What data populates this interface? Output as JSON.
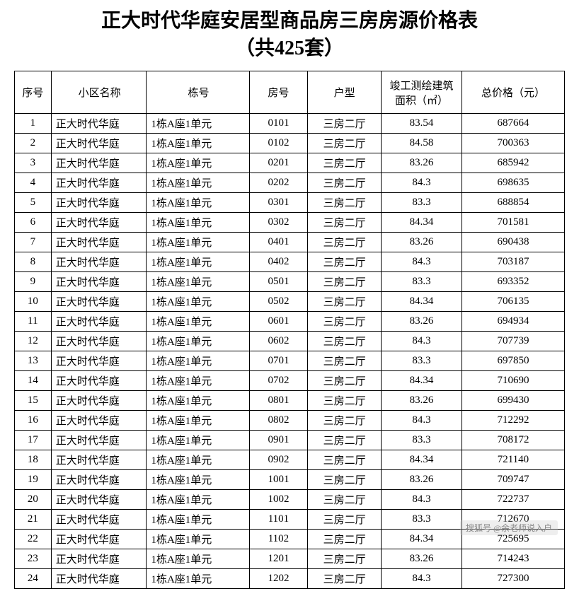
{
  "title_line1": "正大时代华庭安居型商品房三房房源价格表",
  "title_line2": "（共425套）",
  "table": {
    "columns": [
      "序号",
      "小区名称",
      "栋号",
      "房号",
      "户型",
      "竣工测绘建筑面积（㎡）",
      "总价格（元）"
    ],
    "rows": [
      [
        "1",
        "正大时代华庭",
        "1栋A座1单元",
        "0101",
        "三房二厅",
        "83.54",
        "687664"
      ],
      [
        "2",
        "正大时代华庭",
        "1栋A座1单元",
        "0102",
        "三房二厅",
        "84.58",
        "700363"
      ],
      [
        "3",
        "正大时代华庭",
        "1栋A座1单元",
        "0201",
        "三房二厅",
        "83.26",
        "685942"
      ],
      [
        "4",
        "正大时代华庭",
        "1栋A座1单元",
        "0202",
        "三房二厅",
        "84.3",
        "698635"
      ],
      [
        "5",
        "正大时代华庭",
        "1栋A座1单元",
        "0301",
        "三房二厅",
        "83.3",
        "688854"
      ],
      [
        "6",
        "正大时代华庭",
        "1栋A座1单元",
        "0302",
        "三房二厅",
        "84.34",
        "701581"
      ],
      [
        "7",
        "正大时代华庭",
        "1栋A座1单元",
        "0401",
        "三房二厅",
        "83.26",
        "690438"
      ],
      [
        "8",
        "正大时代华庭",
        "1栋A座1单元",
        "0402",
        "三房二厅",
        "84.3",
        "703187"
      ],
      [
        "9",
        "正大时代华庭",
        "1栋A座1单元",
        "0501",
        "三房二厅",
        "83.3",
        "693352"
      ],
      [
        "10",
        "正大时代华庭",
        "1栋A座1单元",
        "0502",
        "三房二厅",
        "84.34",
        "706135"
      ],
      [
        "11",
        "正大时代华庭",
        "1栋A座1单元",
        "0601",
        "三房二厅",
        "83.26",
        "694934"
      ],
      [
        "12",
        "正大时代华庭",
        "1栋A座1单元",
        "0602",
        "三房二厅",
        "84.3",
        "707739"
      ],
      [
        "13",
        "正大时代华庭",
        "1栋A座1单元",
        "0701",
        "三房二厅",
        "83.3",
        "697850"
      ],
      [
        "14",
        "正大时代华庭",
        "1栋A座1单元",
        "0702",
        "三房二厅",
        "84.34",
        "710690"
      ],
      [
        "15",
        "正大时代华庭",
        "1栋A座1单元",
        "0801",
        "三房二厅",
        "83.26",
        "699430"
      ],
      [
        "16",
        "正大时代华庭",
        "1栋A座1单元",
        "0802",
        "三房二厅",
        "84.3",
        "712292"
      ],
      [
        "17",
        "正大时代华庭",
        "1栋A座1单元",
        "0901",
        "三房二厅",
        "83.3",
        "708172"
      ],
      [
        "18",
        "正大时代华庭",
        "1栋A座1单元",
        "0902",
        "三房二厅",
        "84.34",
        "721140"
      ],
      [
        "19",
        "正大时代华庭",
        "1栋A座1单元",
        "1001",
        "三房二厅",
        "83.26",
        "709747"
      ],
      [
        "20",
        "正大时代华庭",
        "1栋A座1单元",
        "1002",
        "三房二厅",
        "84.3",
        "722737"
      ],
      [
        "21",
        "正大时代华庭",
        "1栋A座1单元",
        "1101",
        "三房二厅",
        "83.3",
        "712670"
      ],
      [
        "22",
        "正大时代华庭",
        "1栋A座1单元",
        "1102",
        "三房二厅",
        "84.34",
        "725695"
      ],
      [
        "23",
        "正大时代华庭",
        "1栋A座1单元",
        "1201",
        "三房二厅",
        "83.26",
        "714243"
      ],
      [
        "24",
        "正大时代华庭",
        "1栋A座1单元",
        "1202",
        "三房二厅",
        "84.3",
        "727300"
      ]
    ]
  },
  "watermark": "搜狐号 @余老师说入户"
}
